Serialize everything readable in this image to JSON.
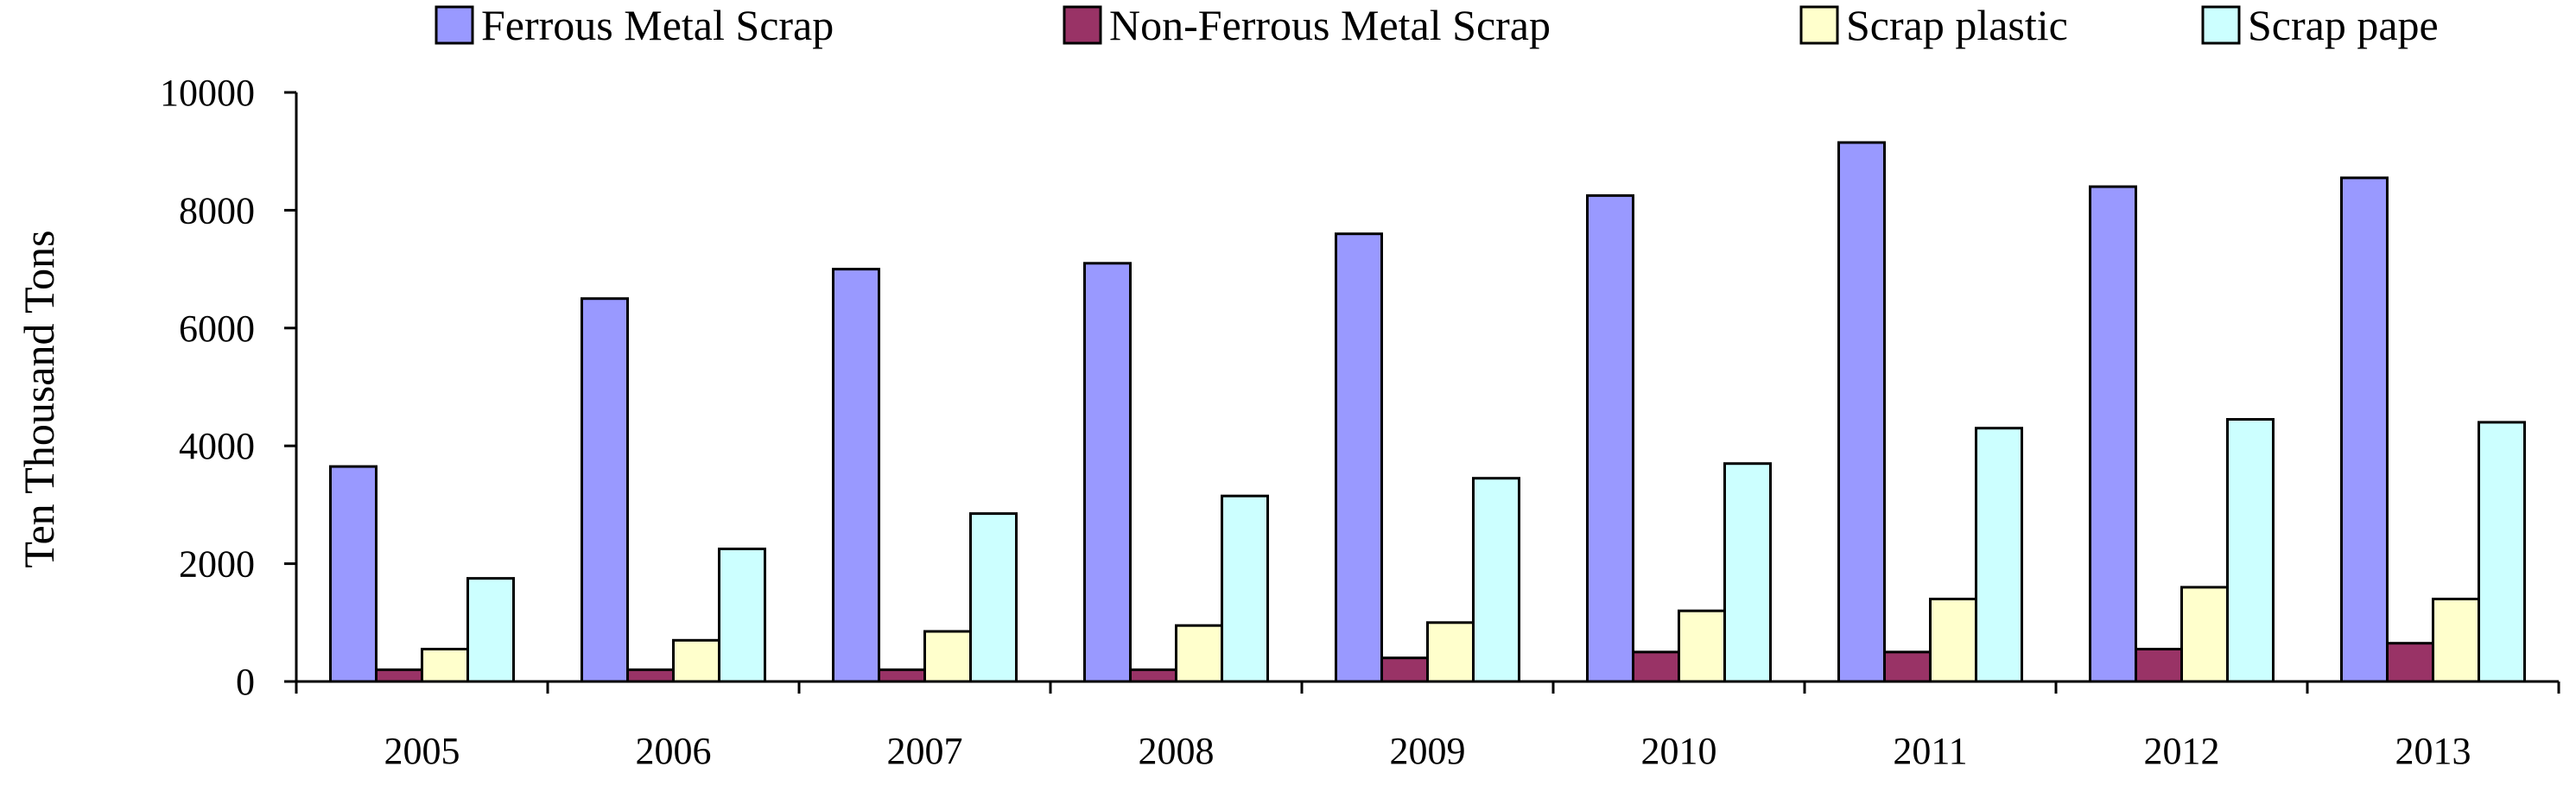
{
  "chart_data": {
    "type": "bar",
    "title": "",
    "xlabel": "",
    "ylabel": "Ten Thousand Tons",
    "ylim": [
      0,
      10000
    ],
    "yticks": [
      0,
      2000,
      4000,
      6000,
      8000,
      10000
    ],
    "grid": false,
    "legend_position": "top",
    "categories": [
      "2005",
      "2006",
      "2007",
      "2008",
      "2009",
      "2010",
      "2011",
      "2012",
      "2013"
    ],
    "series": [
      {
        "name": "Ferrous Metal Scrap",
        "color": "#9999ff",
        "values": [
          3650,
          6500,
          7000,
          7100,
          7600,
          8250,
          9150,
          8400,
          8550
        ]
      },
      {
        "name": "Non-Ferrous Metal Scrap",
        "color": "#993366",
        "values": [
          200,
          200,
          200,
          200,
          400,
          500,
          500,
          550,
          650
        ]
      },
      {
        "name": "Scrap plastic",
        "color": "#ffffcc",
        "values": [
          550,
          700,
          850,
          950,
          1000,
          1200,
          1400,
          1600,
          1400
        ]
      },
      {
        "name": "Scrap pape",
        "color": "#ccffff",
        "values": [
          1750,
          2250,
          2850,
          3150,
          3450,
          3700,
          4300,
          4450,
          4400
        ]
      }
    ]
  }
}
